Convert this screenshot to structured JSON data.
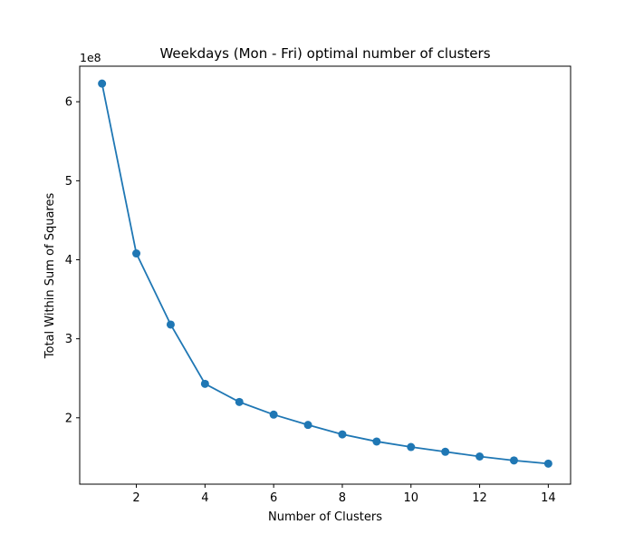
{
  "chart_data": {
    "type": "line",
    "title": "Weekdays (Mon - Fri) optimal number of clusters",
    "xlabel": "Number of Clusters",
    "ylabel": "Total Within Sum of Squares",
    "y_offset_label": "1e8",
    "xlim": [
      0.35,
      14.65
    ],
    "ylim": [
      1.16,
      6.45
    ],
    "y_scale_factor": 100000000,
    "x_ticks": [
      2,
      4,
      6,
      8,
      10,
      12,
      14
    ],
    "y_ticks": [
      2,
      3,
      4,
      5,
      6
    ],
    "grid": false,
    "series": [
      {
        "color": "#1f77b4",
        "marker": "circle",
        "x": [
          1,
          2,
          3,
          4,
          5,
          6,
          7,
          8,
          9,
          10,
          11,
          12,
          13,
          14
        ],
        "y": [
          6.23,
          4.08,
          3.18,
          2.43,
          2.2,
          2.04,
          1.91,
          1.79,
          1.7,
          1.63,
          1.57,
          1.51,
          1.46,
          1.42
        ]
      }
    ]
  }
}
